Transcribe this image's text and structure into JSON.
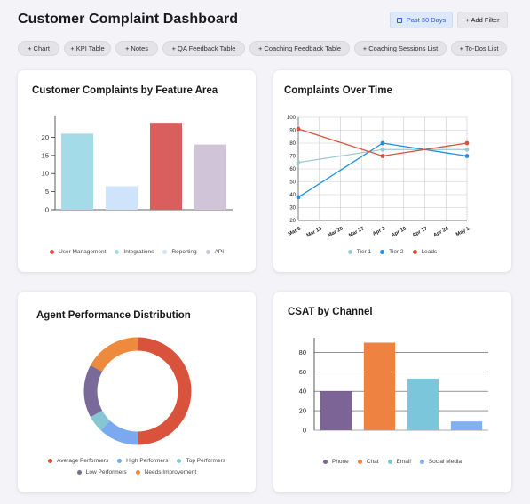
{
  "header": {
    "title": "Customer Complaint Dashboard",
    "date_range_label": "Past 30 Days",
    "add_filter_label": "+ Add Filter"
  },
  "toolbar": {
    "chips": [
      "+ Chart",
      "+ KPI Table",
      "+ Notes",
      "+ QA Feedback Table",
      "+ Coaching Feedback Table",
      "+ Coaching Sessions List",
      "+ To-Dos List"
    ]
  },
  "cards": {
    "feature_area": {
      "title": "Customer Complaints by Feature Area"
    },
    "over_time": {
      "title": "Complaints Over Time"
    },
    "agent_perf": {
      "title": "Agent Performance Distribution"
    },
    "csat": {
      "title": "CSAT by Channel"
    }
  },
  "chart_data": [
    {
      "type": "bar",
      "title": "Customer Complaints by Feature Area",
      "categories": [
        "User Management",
        "Integrations",
        "Reporting",
        "API"
      ],
      "values": [
        21,
        6.5,
        24,
        18
      ],
      "colors": [
        "#a3dbe8",
        "#cfe3fb",
        "#d95f5f",
        "#cfc4d8"
      ],
      "yticks": [
        0,
        5,
        10,
        15,
        20
      ],
      "ylim": [
        0,
        26
      ],
      "legend": [
        "User Management",
        "Integrations",
        "Reporting",
        "API"
      ],
      "legend_colors": [
        "#d9534f",
        "#a3dbe8",
        "#cfe3fb",
        "#cfc4d8"
      ],
      "legend_position": "bottom"
    },
    {
      "type": "line",
      "title": "Complaints Over Time",
      "x": [
        "Mar 6",
        "Mar 13",
        "Mar 20",
        "Mar 27",
        "Apr 3",
        "Apr 10",
        "Apr 17",
        "Apr 24",
        "May 1"
      ],
      "series": [
        {
          "name": "Tier 1",
          "color": "#9fc9cf",
          "points": [
            [
              0,
              65
            ],
            [
              4,
              75
            ],
            [
              8,
              75
            ]
          ]
        },
        {
          "name": "Tier 2",
          "color": "#1f8fe0",
          "points": [
            [
              0,
              38
            ],
            [
              4,
              80
            ],
            [
              8,
              70
            ]
          ]
        },
        {
          "name": "Leads",
          "color": "#d9533c",
          "points": [
            [
              0,
              91
            ],
            [
              4,
              70
            ],
            [
              8,
              80
            ]
          ]
        }
      ],
      "yticks": [
        20,
        30,
        40,
        50,
        60,
        70,
        80,
        90,
        100
      ],
      "ylim": [
        20,
        100
      ],
      "grid": true,
      "legend_position": "bottom"
    },
    {
      "type": "pie",
      "title": "Agent Performance Distribution",
      "donut": true,
      "slices": [
        {
          "name": "Average Performers",
          "value": 50,
          "color": "#d9533c"
        },
        {
          "name": "High Performers",
          "value": 12,
          "color": "#7aa9f0"
        },
        {
          "name": "Top Performers",
          "value": 5,
          "color": "#86c6d2"
        },
        {
          "name": "Low Performers",
          "value": 16,
          "color": "#7a6a9a"
        },
        {
          "name": "Needs Improvement",
          "value": 17,
          "color": "#ee8a3e"
        }
      ],
      "legend_position": "bottom"
    },
    {
      "type": "bar",
      "title": "CSAT by Channel",
      "categories": [
        "Phone",
        "Chat",
        "Email",
        "Social Media"
      ],
      "values": [
        40,
        90,
        53,
        9
      ],
      "colors": [
        "#7c6496",
        "#ee8240",
        "#7bc6da",
        "#7fb0f3"
      ],
      "yticks": [
        0,
        20,
        40,
        60,
        80
      ],
      "ylim": [
        0,
        95
      ],
      "legend_position": "bottom"
    }
  ]
}
